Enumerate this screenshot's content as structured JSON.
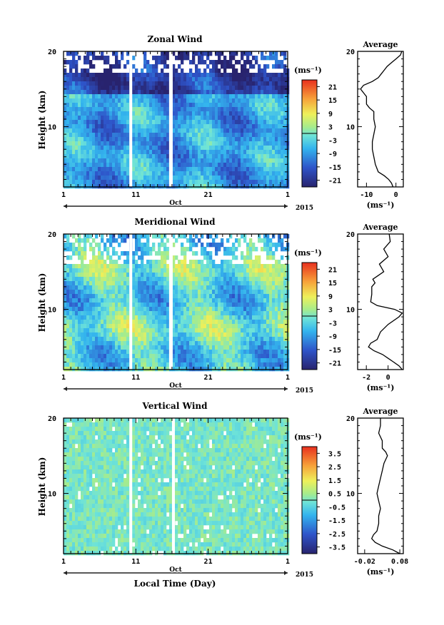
{
  "chart_data": [
    {
      "type": "heatmap",
      "title": "Zonal Wind",
      "ylabel": "Height (km)",
      "ylim": [
        2,
        20
      ],
      "yticks": [
        "20",
        "10"
      ],
      "xlim": [
        1,
        32
      ],
      "xticks": [
        "1",
        "11",
        "21",
        "1"
      ],
      "xcaption": "Oct",
      "year_label": "2015",
      "colorbar": {
        "unit": "(ms⁻¹)",
        "ticks": [
          "21",
          "15",
          "9",
          "3",
          "-3",
          "-9",
          "-15",
          "-21"
        ],
        "range": [
          -24,
          24
        ]
      },
      "gaps": [
        [
          10.1,
          10.5
        ],
        [
          15.6,
          16.1
        ]
      ],
      "profile": {
        "title": "Average",
        "xlabel": "(ms⁻¹)",
        "xticks": [
          "-10",
          "0"
        ],
        "xlim": [
          -13,
          2.5
        ],
        "heights": [
          2,
          2.5,
          3,
          3.5,
          4,
          5,
          6,
          7,
          8,
          9,
          10,
          11,
          12,
          12.5,
          13,
          13.5,
          14,
          14.5,
          15,
          15.5,
          16,
          16.5,
          17,
          17.5,
          18,
          18.5,
          19,
          19.5,
          20
        ],
        "values": [
          -1,
          -1.5,
          -2.5,
          -4,
          -6,
          -7,
          -7.5,
          -8,
          -8,
          -7.5,
          -7,
          -7.5,
          -7.5,
          -9,
          -10,
          -10,
          -10,
          -11,
          -12,
          -11,
          -8,
          -6,
          -5,
          -4,
          -3,
          -1.5,
          0,
          1.5,
          2
        ]
      }
    },
    {
      "type": "heatmap",
      "title": "Meridional Wind",
      "ylabel": "Height (km)",
      "ylim": [
        2,
        20
      ],
      "yticks": [
        "20",
        "10"
      ],
      "xlim": [
        1,
        32
      ],
      "xticks": [
        "1",
        "11",
        "21",
        "1"
      ],
      "xcaption": "Oct",
      "year_label": "2015",
      "colorbar": {
        "unit": "(ms⁻¹)",
        "ticks": [
          "21",
          "15",
          "9",
          "3",
          "-3",
          "-9",
          "-15",
          "-21"
        ],
        "range": [
          -24,
          24
        ]
      },
      "gaps": [
        [
          10.1,
          10.5
        ],
        [
          15.6,
          16.1
        ]
      ],
      "profile": {
        "title": "Average",
        "xlabel": "(ms⁻¹)",
        "xticks": [
          "-2",
          "0"
        ],
        "xlim": [
          -2.8,
          1.4
        ],
        "heights": [
          2,
          2.5,
          3,
          3.5,
          4,
          4.5,
          5,
          5.5,
          6,
          7,
          8,
          9,
          9.5,
          10,
          10.5,
          11,
          12,
          13,
          13.5,
          14,
          14.5,
          15,
          16,
          17,
          18,
          19,
          20
        ],
        "values": [
          1.3,
          1,
          0.5,
          0,
          -0.5,
          -1.3,
          -1.8,
          -1.6,
          -1,
          -0.7,
          0,
          1,
          1.3,
          0.6,
          -1,
          -1.6,
          -1.5,
          -1.5,
          -1.2,
          -1.4,
          -0.9,
          -0.4,
          -0.8,
          0,
          -0.4,
          0.2,
          0.1
        ]
      }
    },
    {
      "type": "heatmap",
      "title": "Vertical Wind",
      "ylabel": "Height (km)",
      "ylim": [
        2,
        20
      ],
      "yticks": [
        "20",
        "10"
      ],
      "xlim": [
        1,
        32
      ],
      "xticks": [
        "1",
        "11",
        "21",
        "1"
      ],
      "xcaption": "Oct",
      "xlabel": "Local Time (Day)",
      "year_label": "2015",
      "colorbar": {
        "unit": "(ms⁻¹)",
        "ticks": [
          "3.5",
          "2.5",
          "1.5",
          "0.5",
          "-0.5",
          "-1.5",
          "-2.5",
          "-3.5"
        ],
        "range": [
          -4,
          4
        ]
      },
      "gaps": [
        [
          10.1,
          10.5
        ],
        [
          16.0,
          16.4
        ]
      ],
      "profile": {
        "title": "Average",
        "xlabel": "(ms⁻¹)",
        "xticks": [
          "-0.02",
          "0.08"
        ],
        "xlim": [
          -0.04,
          0.09
        ],
        "heights": [
          2,
          2.5,
          3,
          3.5,
          4,
          4.5,
          5,
          6,
          7,
          8,
          9,
          10,
          11,
          12,
          13,
          14,
          15,
          15.5,
          16,
          17,
          18,
          19,
          20
        ],
        "values": [
          0.08,
          0.06,
          0.03,
          0.01,
          0,
          0.005,
          0.015,
          0.02,
          0.02,
          0.025,
          0.02,
          0.015,
          0.02,
          0.025,
          0.03,
          0.035,
          0.045,
          0.04,
          0.03,
          0.03,
          0.02,
          0.025,
          0.025
        ]
      }
    }
  ]
}
